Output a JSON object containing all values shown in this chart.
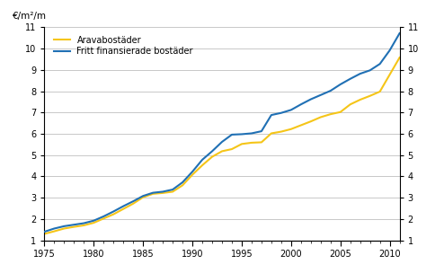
{
  "title_ylabel": "€/m²/m",
  "ylim": [
    1,
    11
  ],
  "xlim": [
    1975,
    2011
  ],
  "yticks": [
    1,
    2,
    3,
    4,
    5,
    6,
    7,
    8,
    9,
    10,
    11
  ],
  "xticks": [
    1975,
    1980,
    1985,
    1990,
    1995,
    2000,
    2005,
    2010
  ],
  "legend_labels": [
    "Aravabostäder",
    "Fritt finansierade bostäder"
  ],
  "arava_color": "#f5c518",
  "fritt_color": "#2070b4",
  "arava_data": [
    [
      1975,
      1.3
    ],
    [
      1976,
      1.42
    ],
    [
      1977,
      1.55
    ],
    [
      1978,
      1.63
    ],
    [
      1979,
      1.7
    ],
    [
      1980,
      1.82
    ],
    [
      1981,
      2.02
    ],
    [
      1982,
      2.22
    ],
    [
      1983,
      2.47
    ],
    [
      1984,
      2.72
    ],
    [
      1985,
      3.02
    ],
    [
      1986,
      3.18
    ],
    [
      1987,
      3.22
    ],
    [
      1988,
      3.28
    ],
    [
      1989,
      3.58
    ],
    [
      1990,
      4.08
    ],
    [
      1991,
      4.52
    ],
    [
      1992,
      4.92
    ],
    [
      1993,
      5.18
    ],
    [
      1994,
      5.28
    ],
    [
      1995,
      5.52
    ],
    [
      1996,
      5.58
    ],
    [
      1997,
      5.6
    ],
    [
      1998,
      6.02
    ],
    [
      1999,
      6.1
    ],
    [
      2000,
      6.22
    ],
    [
      2001,
      6.4
    ],
    [
      2002,
      6.58
    ],
    [
      2003,
      6.78
    ],
    [
      2004,
      6.92
    ],
    [
      2005,
      7.02
    ],
    [
      2006,
      7.38
    ],
    [
      2007,
      7.6
    ],
    [
      2008,
      7.78
    ],
    [
      2009,
      7.98
    ],
    [
      2010,
      8.78
    ],
    [
      2011,
      9.58
    ]
  ],
  "fritt_data": [
    [
      1975,
      1.4
    ],
    [
      1976,
      1.55
    ],
    [
      1977,
      1.66
    ],
    [
      1978,
      1.73
    ],
    [
      1979,
      1.8
    ],
    [
      1980,
      1.92
    ],
    [
      1981,
      2.12
    ],
    [
      1982,
      2.35
    ],
    [
      1983,
      2.6
    ],
    [
      1984,
      2.83
    ],
    [
      1985,
      3.08
    ],
    [
      1986,
      3.23
    ],
    [
      1987,
      3.28
    ],
    [
      1988,
      3.38
    ],
    [
      1989,
      3.72
    ],
    [
      1990,
      4.22
    ],
    [
      1991,
      4.78
    ],
    [
      1992,
      5.18
    ],
    [
      1993,
      5.62
    ],
    [
      1994,
      5.96
    ],
    [
      1995,
      5.98
    ],
    [
      1996,
      6.02
    ],
    [
      1997,
      6.12
    ],
    [
      1998,
      6.88
    ],
    [
      1999,
      6.98
    ],
    [
      2000,
      7.12
    ],
    [
      2001,
      7.38
    ],
    [
      2002,
      7.62
    ],
    [
      2003,
      7.82
    ],
    [
      2004,
      8.02
    ],
    [
      2005,
      8.32
    ],
    [
      2006,
      8.58
    ],
    [
      2007,
      8.82
    ],
    [
      2008,
      8.98
    ],
    [
      2009,
      9.28
    ],
    [
      2010,
      9.92
    ],
    [
      2011,
      10.72
    ]
  ],
  "grid_color": "#c8c8c8",
  "background_color": "#ffffff",
  "linewidth": 1.5
}
